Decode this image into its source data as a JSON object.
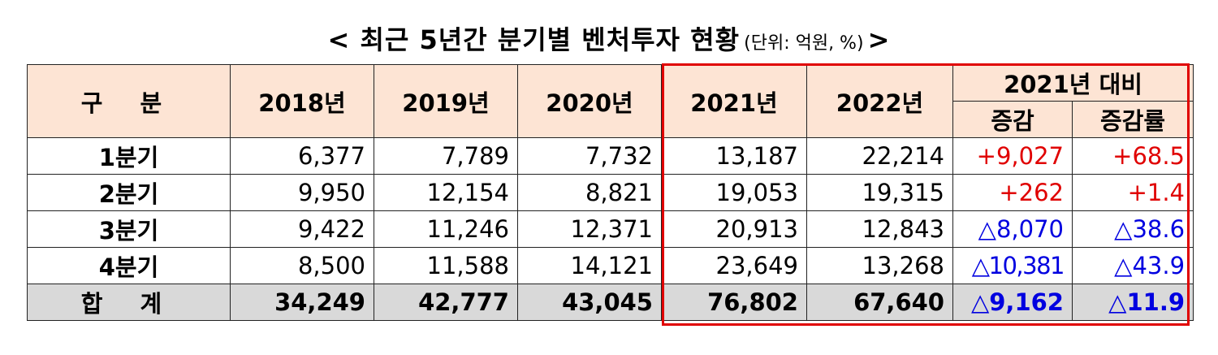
{
  "title": {
    "main": "< 최근 5년간 분기별 벤처투자 현황",
    "unit": "(단위: 억원, %)",
    "close": ">"
  },
  "table": {
    "header": {
      "category": "구  분",
      "years": [
        "2018년",
        "2019년",
        "2020년",
        "2021년",
        "2022년"
      ],
      "compare": "2021년 대비",
      "change": "증감",
      "change_rate": "증감률"
    },
    "rows": [
      {
        "label": "1분기",
        "values": [
          "6,377",
          "7,789",
          "7,732",
          "13,187",
          "22,214"
        ],
        "change": "+9,027",
        "rate": "+68.5"
      },
      {
        "label": "2분기",
        "values": [
          "9,950",
          "12,154",
          "8,821",
          "19,053",
          "19,315"
        ],
        "change": "+262",
        "rate": "+1.4"
      },
      {
        "label": "3분기",
        "values": [
          "9,422",
          "11,246",
          "12,371",
          "20,913",
          "12,843"
        ],
        "change": "△8,070",
        "rate": "△38.6"
      },
      {
        "label": "4분기",
        "values": [
          "8,500",
          "11,588",
          "14,121",
          "23,649",
          "13,268"
        ],
        "change": "△10,381",
        "rate": "△43.9"
      }
    ],
    "total": {
      "label": "합  계",
      "values": [
        "34,249",
        "42,777",
        "43,045",
        "76,802",
        "67,640"
      ],
      "change": "△9,162",
      "rate": "△11.9"
    }
  },
  "colors": {
    "increase": "#e00000",
    "decrease": "#0000e0",
    "header_bg": "#fde4d4",
    "total_bg": "#d9d9d9",
    "highlight_border": "#e00000"
  }
}
